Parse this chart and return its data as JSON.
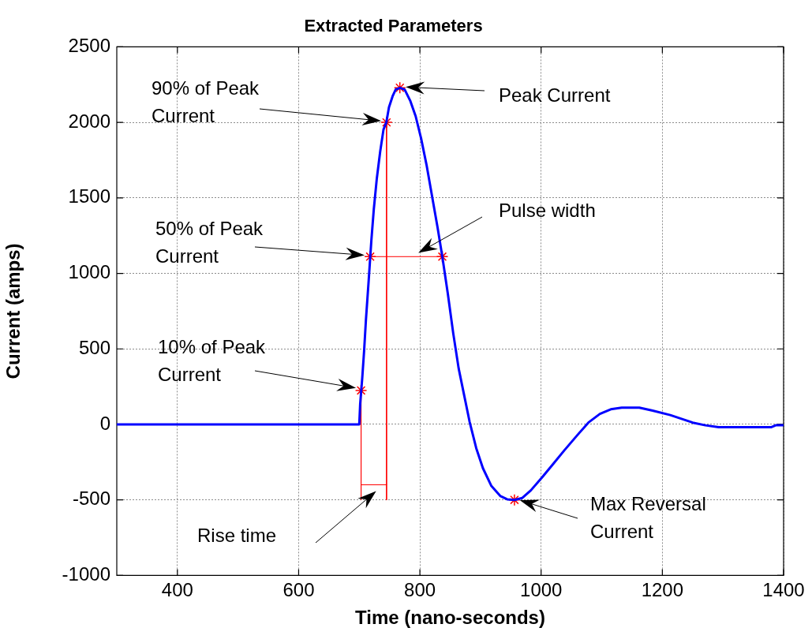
{
  "chart_data": {
    "type": "line",
    "title": "Extracted Parameters",
    "xlabel": "Time (nano-seconds)",
    "ylabel": "Current (amps)",
    "xlim": [
      300,
      1400
    ],
    "xticks": [
      400,
      600,
      800,
      1000,
      1200,
      1400
    ],
    "ylim": [
      -1000,
      2500
    ],
    "yticks": [
      -1000,
      -500,
      0,
      500,
      1000,
      1500,
      2000,
      2500
    ],
    "grid": true,
    "line_style": "solid",
    "series": [
      {
        "type": "line",
        "color": "#0000ff",
        "x": [
          300,
          500,
          700,
          701.5,
          705,
          708,
          711,
          715.6,
          720,
          724,
          729,
          734.5,
          740,
          744.7,
          749,
          755,
          760,
          767,
          775,
          784,
          793,
          802,
          811,
          820,
          829,
          837,
          846,
          855,
          864,
          873,
          882,
          893,
          904,
          918,
          933,
          944,
          956,
          969,
          983,
          1002,
          1020,
          1038,
          1060,
          1078,
          1097,
          1115,
          1133,
          1162,
          1184,
          1213,
          1250,
          1271,
          1293,
          1380,
          1387,
          1400
        ],
        "values": [
          0,
          0,
          0,
          135,
          311,
          487,
          692,
          956,
          1220,
          1425,
          1630,
          1806,
          1953,
          2000,
          2100,
          2173,
          2217,
          2229,
          2217,
          2144,
          2041,
          1894,
          1718,
          1513,
          1308,
          1111,
          868,
          604,
          370,
          194,
          18,
          -158,
          -290,
          -408,
          -475,
          -496,
          -500,
          -487,
          -437,
          -349,
          -261,
          -173,
          -70,
          12,
          70,
          100,
          111,
          111,
          91,
          62,
          12,
          -6,
          -18,
          -18,
          -6,
          -6
        ]
      },
      {
        "type": "scatter",
        "color": "#ff0000",
        "marker": "cross",
        "x": [
          703,
          718,
          745,
          767,
          837,
          956
        ],
        "values": [
          225,
          1111,
          2000,
          2229,
          1111,
          -500
        ]
      },
      {
        "type": "line",
        "color": "#ff0000",
        "x": [
          703,
          703
        ],
        "values": [
          225,
          -500
        ]
      },
      {
        "type": "line",
        "color": "#ff0000",
        "x": [
          745,
          745
        ],
        "values": [
          2000,
          -500
        ]
      },
      {
        "type": "line",
        "color": "#ff0000",
        "x": [
          703,
          745
        ],
        "values": [
          -400,
          -400
        ]
      },
      {
        "type": "line",
        "color": "#ff0000",
        "x": [
          718,
          837
        ],
        "values": [
          1111,
          1111
        ]
      }
    ],
    "annotations": [
      "90% of Peak\nCurrent",
      "Peak Current",
      "50% of Peak\nCurrent",
      "Pulse width",
      "10% of Peak\nCurrent",
      "Rise time",
      "Max Reversal\nCurrent"
    ]
  }
}
